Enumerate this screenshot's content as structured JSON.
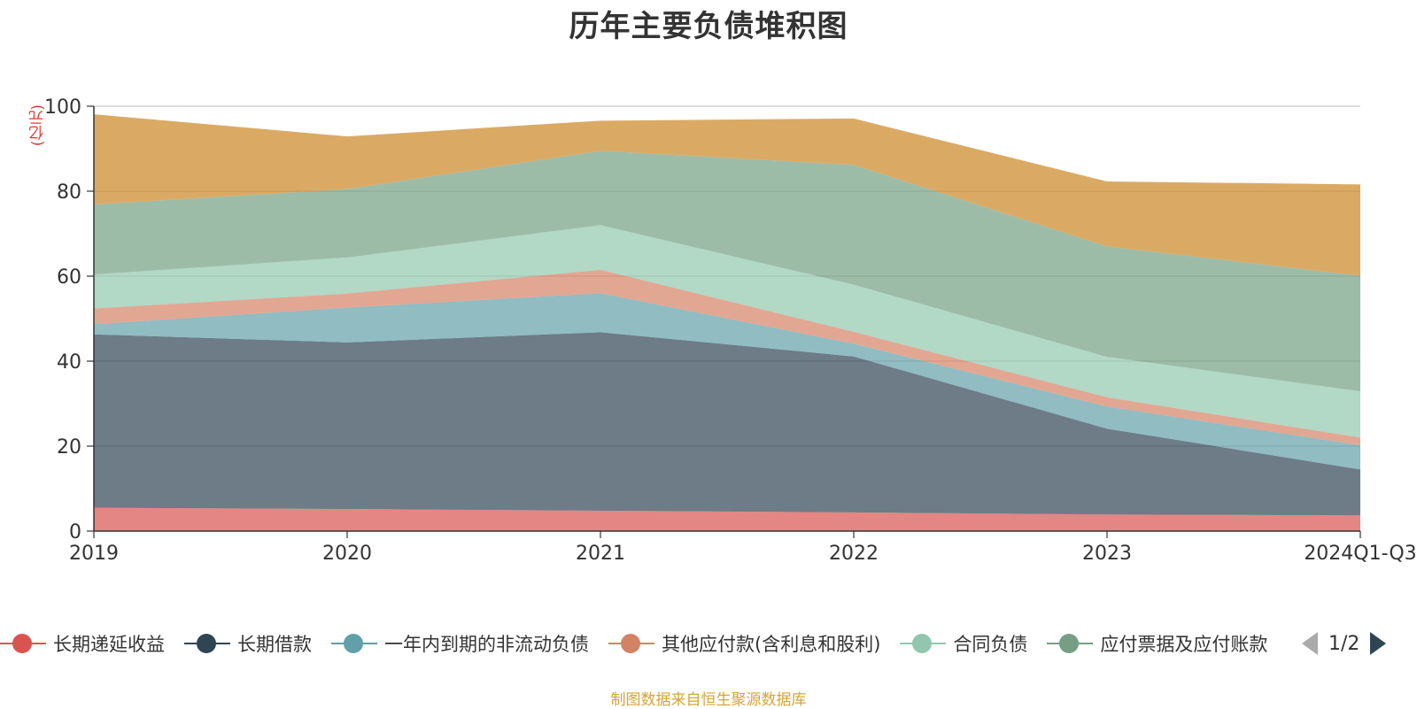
{
  "title": "历年主要负债堆积图",
  "unit_label": "(亿元)",
  "source_note": "制图数据来自恒生聚源数据库",
  "pager": {
    "text": "1/2"
  },
  "chart_data": {
    "type": "area",
    "stacked": true,
    "title": "历年主要负债堆积图",
    "ylabel": "(亿元)",
    "ylim": [
      0,
      100
    ],
    "yticks": [
      0,
      20,
      40,
      60,
      80,
      100
    ],
    "grid": true,
    "legend_position": "bottom",
    "categories": [
      "2019",
      "2020",
      "2021",
      "2022",
      "2023",
      "2024Q1-Q3"
    ],
    "series": [
      {
        "name": "长期递延收益",
        "color": "#d9534f",
        "values": [
          5.5,
          5.2,
          4.8,
          4.4,
          3.9,
          3.7
        ]
      },
      {
        "name": "长期借款",
        "color": "#2f4554",
        "values": [
          40.8,
          39.2,
          42.0,
          36.7,
          20.2,
          10.8
        ]
      },
      {
        "name": "一年内到期的非流动负债",
        "color": "#61a0a8",
        "values": [
          2.4,
          8.2,
          9.2,
          3.0,
          5.2,
          5.7
        ]
      },
      {
        "name": "其他应付款(含利息和股利)",
        "color": "#d48265",
        "values": [
          3.7,
          3.3,
          5.5,
          2.8,
          2.2,
          1.8
        ]
      },
      {
        "name": "合同负债",
        "color": "#91c7ae",
        "values": [
          8.0,
          8.5,
          10.5,
          11.1,
          9.5,
          10.9
        ]
      },
      {
        "name": "应付票据及应付账款",
        "color": "#749f83",
        "values": [
          16.5,
          16.1,
          17.5,
          28.2,
          26.0,
          27.2
        ]
      },
      {
        "name": "",
        "color": "#ca8622",
        "values": [
          21.2,
          12.4,
          7.1,
          10.9,
          15.3,
          21.5
        ]
      }
    ]
  }
}
